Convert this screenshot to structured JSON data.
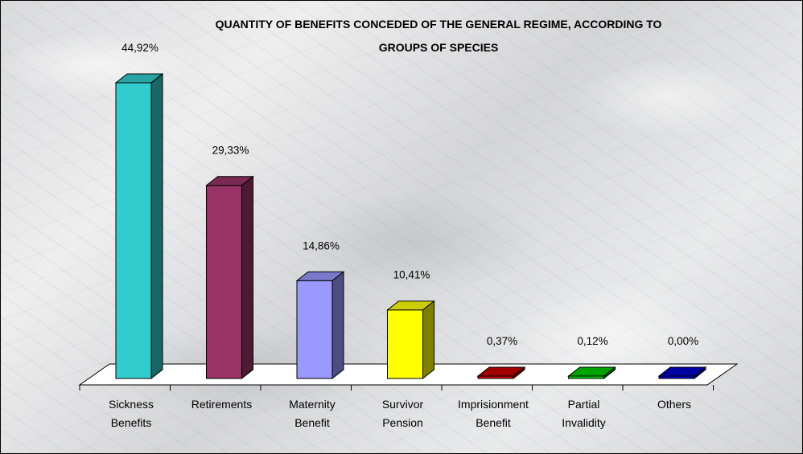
{
  "chart_data": {
    "type": "bar",
    "title_lines": [
      "QUANTITY OF BENEFITS CONCEDED OF THE GENERAL REGIME, ACCORDING TO",
      "GROUPS OF SPECIES"
    ],
    "categories": [
      [
        "Sickness",
        "Benefits"
      ],
      [
        "Retirements"
      ],
      [
        "Maternity",
        "Benefit"
      ],
      [
        "Survivor",
        "Pension"
      ],
      [
        "Imprisionment",
        "Benefit"
      ],
      [
        "Partial",
        "Invalidity"
      ],
      [
        "Others"
      ]
    ],
    "values": [
      44.92,
      29.33,
      14.86,
      10.41,
      0.37,
      0.12,
      0.0
    ],
    "value_labels": [
      "44,92%",
      "29,33%",
      "14,86%",
      "10,41%",
      "0,37%",
      "0,12%",
      "0,00%"
    ],
    "colors": [
      "#33cccc",
      "#993366",
      "#9999ff",
      "#ffff00",
      "#cc0000",
      "#00cc00",
      "#0000cc"
    ],
    "ylim": [
      0,
      50
    ],
    "grid": false,
    "legend": "none"
  }
}
